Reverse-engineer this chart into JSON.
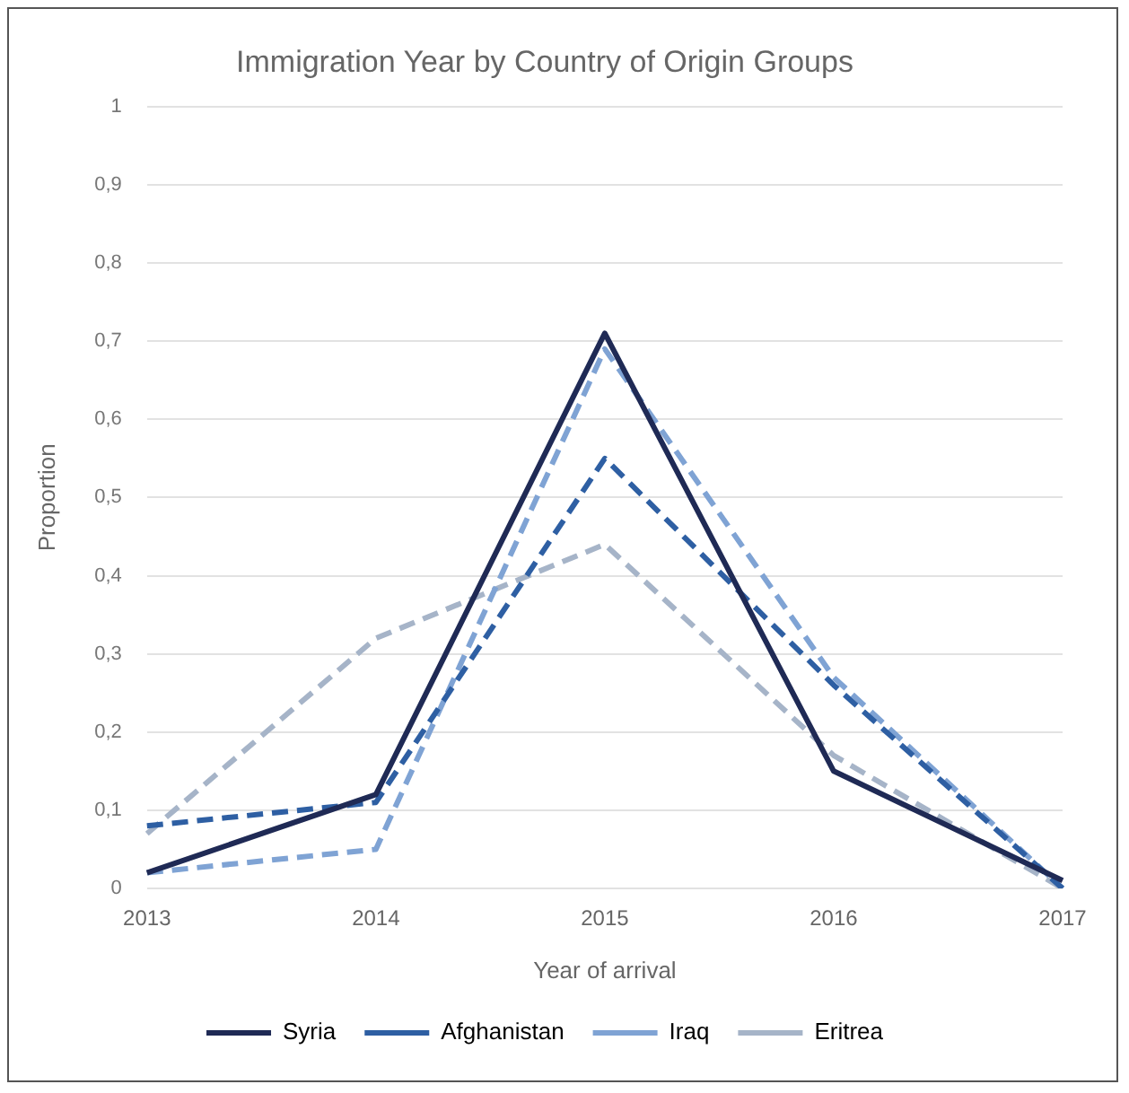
{
  "chart_data": {
    "type": "line",
    "title": "Immigration Year by Country of Origin Groups",
    "xlabel": "Year of arrival",
    "ylabel": "Proportion",
    "categories": [
      "2013",
      "2014",
      "2015",
      "2016",
      "2017"
    ],
    "series": [
      {
        "name": "Syria",
        "color": "#1f2a55",
        "line_style": "solid",
        "values": [
          0.02,
          0.12,
          0.71,
          0.15,
          0.01
        ]
      },
      {
        "name": "Afghanistan",
        "color": "#2e5fa3",
        "line_style": "dashed",
        "values": [
          0.08,
          0.11,
          0.55,
          0.26,
          0.0
        ]
      },
      {
        "name": "Iraq",
        "color": "#7fa3d4",
        "line_style": "dashed",
        "values": [
          0.02,
          0.05,
          0.69,
          0.27,
          0.0
        ]
      },
      {
        "name": "Eritrea",
        "color": "#a6b4c8",
        "line_style": "dashed",
        "values": [
          0.07,
          0.32,
          0.44,
          0.17,
          0.0
        ]
      }
    ],
    "ylim": [
      0,
      1
    ],
    "yticks": [
      0,
      {
        "value": 0.1,
        "label": "0,1"
      },
      {
        "value": 0.2,
        "label": "0,2"
      },
      {
        "value": 0.3,
        "label": "0,3"
      },
      {
        "value": 0.4,
        "label": "0,4"
      },
      {
        "value": 0.5,
        "label": "0,5"
      },
      {
        "value": 0.6,
        "label": "0,6"
      },
      {
        "value": 0.7,
        "label": "0,7"
      },
      {
        "value": 0.8,
        "label": "0,8"
      },
      {
        "value": 0.9,
        "label": "0,9"
      },
      1
    ],
    "grid": "y",
    "legend": "bottom",
    "marker": "none"
  }
}
